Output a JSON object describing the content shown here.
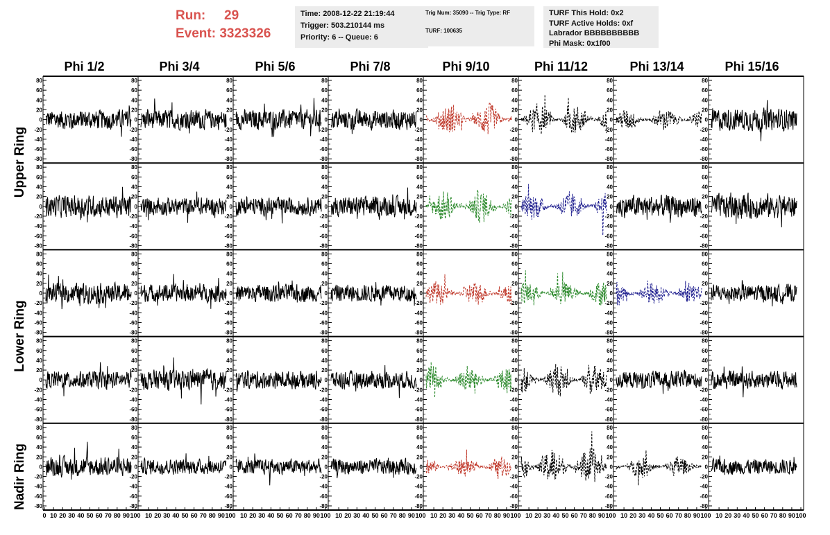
{
  "header": {
    "run_label": "Run:",
    "run_value": "29",
    "event_label": "Event:",
    "event_value": "3323326",
    "info1": [
      "Time: 2008-12-22 21:19:44",
      "Trigger: 503.210144 ms",
      "Priority: 6 -- Queue: 6"
    ],
    "info2": [
      "Trig Num: 35090 -- Trig Type: RF",
      "TURF: 100635"
    ],
    "info3": [
      "TURF This Hold: 0x2",
      "TURF Active Holds: 0xf",
      "Labrador BBBBBBBBBB",
      "Phi Mask: 0x1f00"
    ]
  },
  "columns": [
    "Phi 1/2",
    "Phi 3/4",
    "Phi 5/6",
    "Phi 7/8",
    "Phi 9/10",
    "Phi 11/12",
    "Phi 13/14",
    "Phi 15/16"
  ],
  "rings": [
    "Upper Ring",
    "Lower Ring",
    "Nadir Ring"
  ],
  "colors": {
    "red": "#c0392b",
    "green": "#2e8b2e",
    "blue": "#1f1f8f",
    "black": "#000000",
    "header_red": "#d9534f"
  },
  "chart_data": {
    "type": "line",
    "x_range": [
      0,
      100
    ],
    "y_range": [
      -80,
      80
    ],
    "y_ticks": [
      -80,
      -60,
      -40,
      -20,
      0,
      20,
      40,
      60,
      80
    ],
    "x_ticks": [
      0,
      10,
      20,
      30,
      40,
      50,
      60,
      70,
      80,
      90,
      100
    ],
    "rows": 5,
    "cols": 8,
    "panel_styles": [
      [
        "solid-black",
        "solid-black",
        "solid-black",
        "solid-black",
        "dashed-red",
        "dashed-black",
        "dashed-black",
        "solid-black"
      ],
      [
        "solid-black",
        "solid-black",
        "solid-black",
        "solid-black",
        "dashed-green",
        "dashed-blue",
        "solid-black",
        "solid-black"
      ],
      [
        "solid-black",
        "solid-black",
        "solid-black",
        "solid-black",
        "dashed-red",
        "dashed-green",
        "dashed-blue",
        "solid-black"
      ],
      [
        "solid-black",
        "solid-black",
        "solid-black",
        "solid-black",
        "dashed-green",
        "dashed-black",
        "solid-black",
        "solid-black"
      ],
      [
        "solid-black",
        "solid-black",
        "solid-black",
        "solid-black",
        "dashed-red",
        "dashed-black",
        "dashed-black",
        "solid-black"
      ]
    ],
    "amplitudes": [
      [
        18,
        18,
        18,
        18,
        30,
        28,
        20,
        20
      ],
      [
        20,
        16,
        16,
        18,
        30,
        26,
        20,
        22
      ],
      [
        18,
        16,
        16,
        16,
        22,
        24,
        22,
        16
      ],
      [
        16,
        18,
        16,
        16,
        26,
        28,
        16,
        16
      ],
      [
        18,
        14,
        14,
        14,
        18,
        34,
        20,
        14
      ]
    ]
  }
}
